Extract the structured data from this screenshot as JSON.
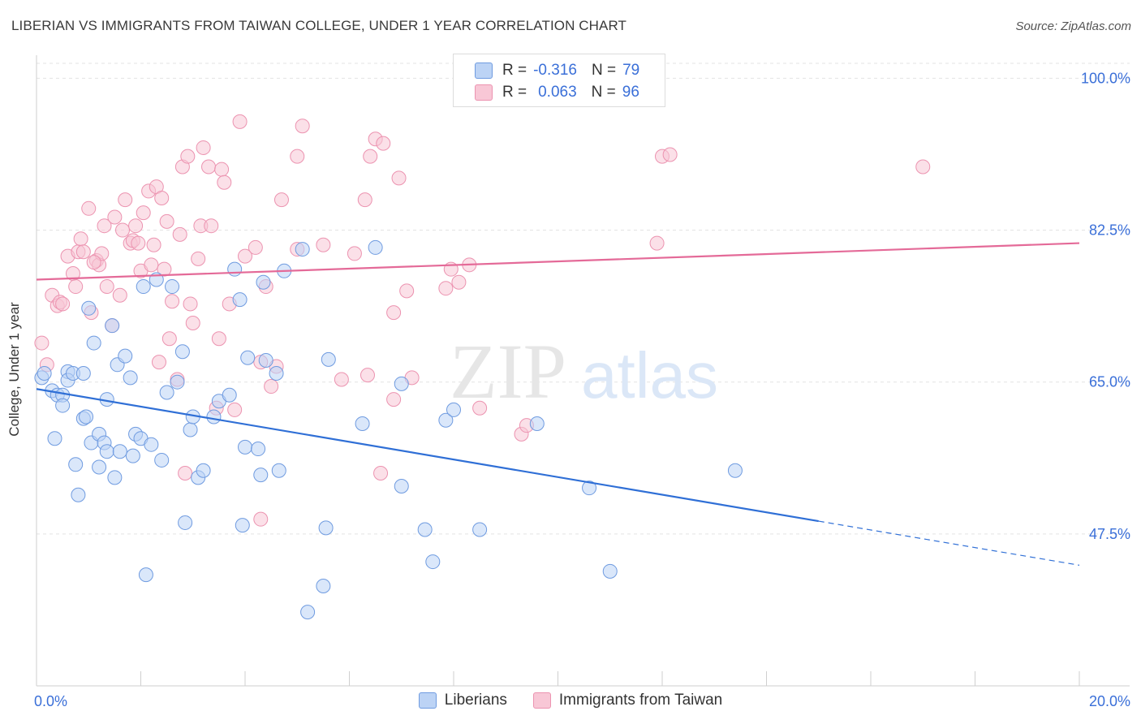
{
  "header": {
    "title": "LIBERIAN VS IMMIGRANTS FROM TAIWAN COLLEGE, UNDER 1 YEAR CORRELATION CHART",
    "source": "Source: ZipAtlas.com"
  },
  "legend": {
    "row1": {
      "r_label": "R =",
      "r_value": "-0.316",
      "n_label": "N =",
      "n_value": "79"
    },
    "row2": {
      "r_label": "R =",
      "r_value": "0.063",
      "n_label": "N =",
      "n_value": "96"
    }
  },
  "bottom_legend": {
    "series1": "Liberians",
    "series2": "Immigrants from Taiwan"
  },
  "colors": {
    "blue_fill": "#bcd3f5",
    "blue_stroke": "#6f9be0",
    "blue_line": "#2f6fd6",
    "pink_fill": "#f8c7d6",
    "pink_stroke": "#ec93b0",
    "pink_line": "#e46a98",
    "axis_text": "#3a6fd8",
    "grid": "#e3e3e3"
  },
  "chart_data": {
    "type": "scatter",
    "title": "LIBERIAN VS IMMIGRANTS FROM TAIWAN COLLEGE, UNDER 1 YEAR CORRELATION CHART",
    "xlabel": "",
    "ylabel": "College, Under 1 year",
    "xlim": [
      0,
      20
    ],
    "ylim": [
      30,
      102
    ],
    "x_tick_labels": [
      "0.0%",
      "20.0%"
    ],
    "y_ticks": [
      47.5,
      65.0,
      82.5,
      100.0
    ],
    "y_tick_labels": [
      "47.5%",
      "65.0%",
      "82.5%",
      "100.0%"
    ],
    "watermark": {
      "part1": "ZIP",
      "part2": "atlas"
    },
    "series": [
      {
        "name": "Liberians",
        "R": -0.316,
        "N": 79,
        "trend": {
          "x_start": 0.0,
          "y_start": 64.2,
          "x_solid_end": 15.0,
          "x_end": 20.0,
          "y_end": 43.9
        },
        "points": [
          [
            0.1,
            65.5
          ],
          [
            0.15,
            66.0
          ],
          [
            0.3,
            64.0
          ],
          [
            0.35,
            58.5
          ],
          [
            0.4,
            63.5
          ],
          [
            0.5,
            63.5
          ],
          [
            0.5,
            62.3
          ],
          [
            0.6,
            66.2
          ],
          [
            0.6,
            65.2
          ],
          [
            0.7,
            66.0
          ],
          [
            0.75,
            55.5
          ],
          [
            0.8,
            52.0
          ],
          [
            0.9,
            60.8
          ],
          [
            0.9,
            66.0
          ],
          [
            0.95,
            61.0
          ],
          [
            1.0,
            73.5
          ],
          [
            1.05,
            58.0
          ],
          [
            1.1,
            69.5
          ],
          [
            1.2,
            55.2
          ],
          [
            1.2,
            59.0
          ],
          [
            1.3,
            58.0
          ],
          [
            1.35,
            57.0
          ],
          [
            1.35,
            63.0
          ],
          [
            1.45,
            71.5
          ],
          [
            1.5,
            54.0
          ],
          [
            1.55,
            67.0
          ],
          [
            1.6,
            57.0
          ],
          [
            1.7,
            68.0
          ],
          [
            1.8,
            65.5
          ],
          [
            1.85,
            56.5
          ],
          [
            1.9,
            59.0
          ],
          [
            2.0,
            58.5
          ],
          [
            2.05,
            76.0
          ],
          [
            2.1,
            42.8
          ],
          [
            2.2,
            57.8
          ],
          [
            2.3,
            76.8
          ],
          [
            2.4,
            56.0
          ],
          [
            2.5,
            63.8
          ],
          [
            2.6,
            76.0
          ],
          [
            2.7,
            65.0
          ],
          [
            2.8,
            68.5
          ],
          [
            2.85,
            48.8
          ],
          [
            2.95,
            59.5
          ],
          [
            3.0,
            61.0
          ],
          [
            3.1,
            54.0
          ],
          [
            3.2,
            54.8
          ],
          [
            3.4,
            61.0
          ],
          [
            3.5,
            62.8
          ],
          [
            3.7,
            63.5
          ],
          [
            3.8,
            78.0
          ],
          [
            3.9,
            74.5
          ],
          [
            3.95,
            48.5
          ],
          [
            4.0,
            57.5
          ],
          [
            4.05,
            67.8
          ],
          [
            4.25,
            57.3
          ],
          [
            4.3,
            54.3
          ],
          [
            4.35,
            76.5
          ],
          [
            4.4,
            67.5
          ],
          [
            4.6,
            66.0
          ],
          [
            4.65,
            54.8
          ],
          [
            4.75,
            77.8
          ],
          [
            5.1,
            80.3
          ],
          [
            5.5,
            41.5
          ],
          [
            5.55,
            48.2
          ],
          [
            5.6,
            67.6
          ],
          [
            6.25,
            60.2
          ],
          [
            6.5,
            80.5
          ],
          [
            7.0,
            53.0
          ],
          [
            7.0,
            64.8
          ],
          [
            7.45,
            48.0
          ],
          [
            7.6,
            44.3
          ],
          [
            7.85,
            60.6
          ],
          [
            8.0,
            61.8
          ],
          [
            8.5,
            48.0
          ],
          [
            9.6,
            60.2
          ],
          [
            10.6,
            52.8
          ],
          [
            11.0,
            43.2
          ],
          [
            13.4,
            54.8
          ],
          [
            5.2,
            38.5
          ]
        ]
      },
      {
        "name": "Immigrants from Taiwan",
        "R": 0.063,
        "N": 96,
        "trend": {
          "x_start": 0.0,
          "y_start": 76.8,
          "x_end": 20.0,
          "y_end": 81.0
        },
        "points": [
          [
            0.1,
            69.5
          ],
          [
            0.2,
            67.0
          ],
          [
            0.3,
            75.0
          ],
          [
            0.4,
            73.8
          ],
          [
            0.45,
            74.2
          ],
          [
            0.5,
            74.0
          ],
          [
            0.6,
            79.5
          ],
          [
            0.7,
            77.5
          ],
          [
            0.75,
            76.0
          ],
          [
            0.8,
            80.0
          ],
          [
            0.85,
            81.5
          ],
          [
            0.9,
            80.0
          ],
          [
            1.0,
            85.0
          ],
          [
            1.05,
            73.0
          ],
          [
            1.15,
            79.0
          ],
          [
            1.2,
            78.5
          ],
          [
            1.25,
            79.8
          ],
          [
            1.3,
            83.0
          ],
          [
            1.35,
            76.0
          ],
          [
            1.45,
            71.5
          ],
          [
            1.5,
            84.0
          ],
          [
            1.6,
            75.0
          ],
          [
            1.65,
            82.5
          ],
          [
            1.7,
            86.0
          ],
          [
            1.8,
            81.0
          ],
          [
            1.85,
            81.3
          ],
          [
            1.9,
            83.0
          ],
          [
            1.95,
            81.0
          ],
          [
            2.0,
            77.8
          ],
          [
            2.05,
            84.5
          ],
          [
            2.15,
            87.0
          ],
          [
            2.2,
            78.5
          ],
          [
            2.25,
            80.8
          ],
          [
            2.3,
            87.5
          ],
          [
            2.35,
            67.3
          ],
          [
            2.4,
            86.2
          ],
          [
            2.45,
            78.0
          ],
          [
            2.5,
            83.5
          ],
          [
            2.55,
            70.0
          ],
          [
            2.6,
            74.3
          ],
          [
            2.7,
            65.3
          ],
          [
            2.75,
            82.0
          ],
          [
            2.8,
            89.8
          ],
          [
            2.85,
            54.5
          ],
          [
            2.9,
            91.0
          ],
          [
            2.95,
            74.0
          ],
          [
            3.0,
            71.8
          ],
          [
            3.1,
            79.2
          ],
          [
            3.15,
            83.0
          ],
          [
            3.2,
            92.0
          ],
          [
            3.3,
            89.8
          ],
          [
            3.35,
            83.0
          ],
          [
            3.45,
            62.0
          ],
          [
            3.5,
            70.0
          ],
          [
            3.55,
            89.5
          ],
          [
            3.6,
            88.0
          ],
          [
            3.7,
            74.0
          ],
          [
            3.9,
            95.0
          ],
          [
            4.0,
            79.5
          ],
          [
            4.2,
            80.5
          ],
          [
            4.3,
            67.3
          ],
          [
            4.4,
            76.0
          ],
          [
            4.5,
            64.5
          ],
          [
            4.6,
            66.8
          ],
          [
            4.7,
            86.0
          ],
          [
            5.0,
            80.3
          ],
          [
            5.1,
            94.5
          ],
          [
            5.5,
            80.8
          ],
          [
            5.85,
            65.3
          ],
          [
            6.1,
            79.8
          ],
          [
            6.3,
            86.0
          ],
          [
            6.35,
            65.8
          ],
          [
            6.4,
            91.0
          ],
          [
            6.5,
            93.0
          ],
          [
            6.65,
            92.5
          ],
          [
            6.6,
            54.5
          ],
          [
            6.85,
            63.0
          ],
          [
            6.85,
            73.0
          ],
          [
            6.95,
            88.5
          ],
          [
            7.1,
            75.5
          ],
          [
            7.2,
            65.5
          ],
          [
            7.85,
            75.8
          ],
          [
            7.95,
            78.0
          ],
          [
            8.1,
            76.5
          ],
          [
            8.3,
            78.5
          ],
          [
            8.5,
            62.0
          ],
          [
            9.3,
            59.0
          ],
          [
            9.4,
            60.0
          ],
          [
            11.9,
            81.0
          ],
          [
            12.0,
            91.0
          ],
          [
            12.15,
            91.2
          ],
          [
            17.0,
            89.8
          ],
          [
            5.0,
            91.0
          ],
          [
            4.3,
            49.2
          ],
          [
            3.8,
            61.8
          ],
          [
            1.1,
            78.8
          ]
        ]
      }
    ]
  }
}
